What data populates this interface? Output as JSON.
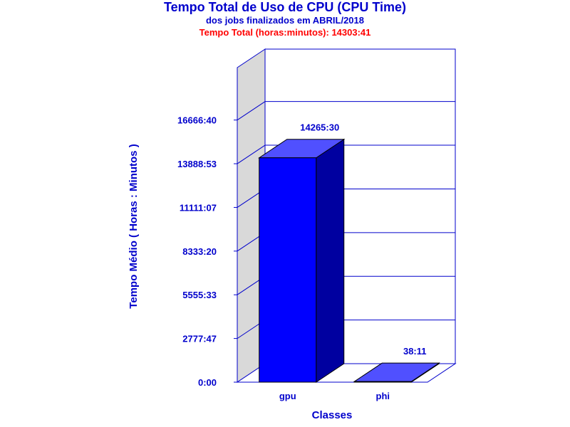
{
  "header": {
    "title": "Tempo Total de Uso de CPU (CPU Time)",
    "subtitle": "dos jobs finalizados em ABRIL/2018",
    "total_line": "Tempo Total (horas:minutos): 14303:41"
  },
  "colors": {
    "text": "#0000cc",
    "total": "#ff0000",
    "bar_front": "#0000ff",
    "bar_top": "#5050ff",
    "bar_side": "#0000a0",
    "side_wall": "#d9d9d9",
    "frame": "#0000cc"
  },
  "chart_data": {
    "type": "bar",
    "xlabel": "Classes",
    "ylabel": "Tempo Médio ( Horas : Minutos )",
    "ylim": [
      0,
      1200000
    ],
    "ytick_values": [
      0,
      166667,
      333333,
      500000,
      666667,
      833333,
      1000000
    ],
    "ytick_labels": [
      "0:00",
      "2777:47",
      "5555:33",
      "8333:20",
      "11111:07",
      "13888:53",
      "16666:40"
    ],
    "categories": [
      "gpu",
      "phi"
    ],
    "values_minutes": [
      855930,
      2291
    ],
    "data_labels": [
      "14265:30",
      "38:11"
    ]
  }
}
